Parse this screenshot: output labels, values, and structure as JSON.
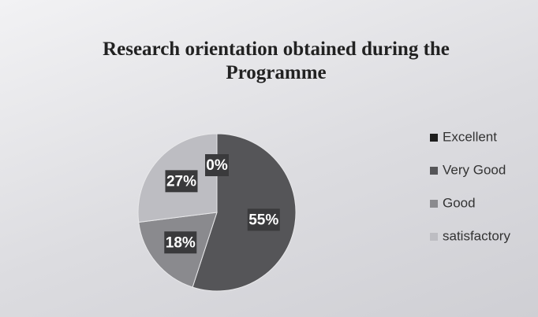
{
  "chart_data": {
    "type": "pie",
    "title": "Research orientation obtained during the Programme",
    "categories": [
      "Excellent",
      "Very Good",
      "Good",
      "satisfactory"
    ],
    "values": [
      0,
      55,
      18,
      27
    ],
    "value_labels": [
      "0%",
      "55%",
      "18%",
      "27%"
    ],
    "colors": [
      "#1e1e1e",
      "#555558",
      "#8a8a8e",
      "#bdbdc2"
    ],
    "legend": "right"
  }
}
